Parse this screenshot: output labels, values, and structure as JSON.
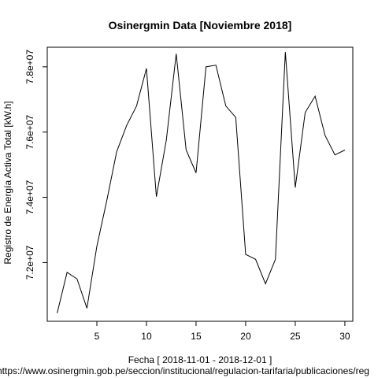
{
  "chart_data": {
    "type": "line",
    "title": "Osinergmin Data [Noviembre 2018]",
    "xlabel": "Fecha [ 2018-11-01 - 2018-12-01 ]",
    "ylabel": "Registro de Energía Activa Total [kW.h]",
    "source": "https://www.osinergmin.gob.pe/seccion/institucional/regulacion-tarifaria/publicaciones/reg",
    "xlim": [
      0,
      30.8
    ],
    "ylim": [
      70200000.0,
      78600000.0
    ],
    "x_ticks": [
      5,
      10,
      15,
      20,
      25,
      30
    ],
    "x_tick_labels": [
      "5",
      "10",
      "15",
      "20",
      "25",
      "30"
    ],
    "y_ticks": [
      72000000,
      74000000,
      76000000,
      78000000
    ],
    "y_tick_labels": [
      "7.2e+07",
      "7.4e+07",
      "7.6e+07",
      "7.8e+07"
    ],
    "grid": false,
    "series": [
      {
        "x": [
          1,
          2,
          3,
          4,
          5,
          6,
          7,
          8,
          9,
          10,
          11,
          12,
          13,
          14,
          15,
          16,
          17,
          18,
          19,
          20,
          21,
          22,
          23,
          24,
          25,
          26,
          27,
          28,
          29,
          30
        ],
        "values": [
          70450000,
          71700000,
          71500000,
          70600000,
          72500000,
          73900000,
          75400000,
          76200000,
          76800000,
          77950000,
          74020000,
          75750000,
          78400000,
          75450000,
          74750000,
          78000000,
          78050000,
          76800000,
          76450000,
          72250000,
          72100000,
          71350000,
          72100000,
          78450000,
          74300000,
          76600000,
          77100000,
          75900000,
          75300000,
          75450000
        ]
      }
    ]
  }
}
